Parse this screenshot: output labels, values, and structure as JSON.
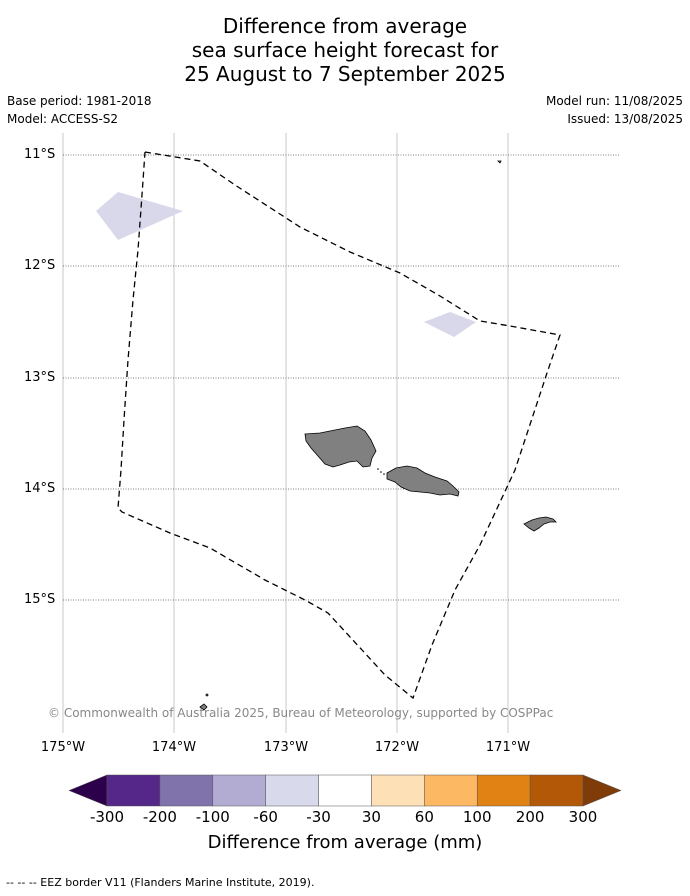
{
  "title": {
    "line1": "Difference from average",
    "line2": "sea surface height forecast for",
    "line3": "25 August to 7 September 2025"
  },
  "meta": {
    "base_period": "Base period: 1981-2018",
    "model": "Model: ACCESS-S2",
    "model_run": "Model run: 11/08/2025",
    "issued": "Issued: 13/08/2025"
  },
  "map": {
    "lat_labels": [
      "11°S",
      "12°S",
      "13°S",
      "14°S",
      "15°S"
    ],
    "lon_labels": [
      "175°W",
      "174°W",
      "173°W",
      "172°W",
      "171°W"
    ],
    "copyright": "© Commonwealth of Australia 2025, Bureau of Meteorology, supported by COSPPac",
    "land_color": "#808080",
    "anomaly_patch_color": "#d8d8ea"
  },
  "colorbar": {
    "ticks": [
      "-300",
      "-200",
      "-100",
      "-60",
      "-30",
      "30",
      "60",
      "100",
      "200",
      "300"
    ],
    "colors": [
      "#2d004b",
      "#542788",
      "#8073ac",
      "#b2abd2",
      "#d8daeb",
      "#ffffff",
      "#fee0b6",
      "#fdb863",
      "#e08214",
      "#b35806",
      "#7f3b08"
    ],
    "title": "Difference from average (mm)"
  },
  "footer": "--  --  -- EEZ border V11 (Flanders Marine Institute, 2019)."
}
